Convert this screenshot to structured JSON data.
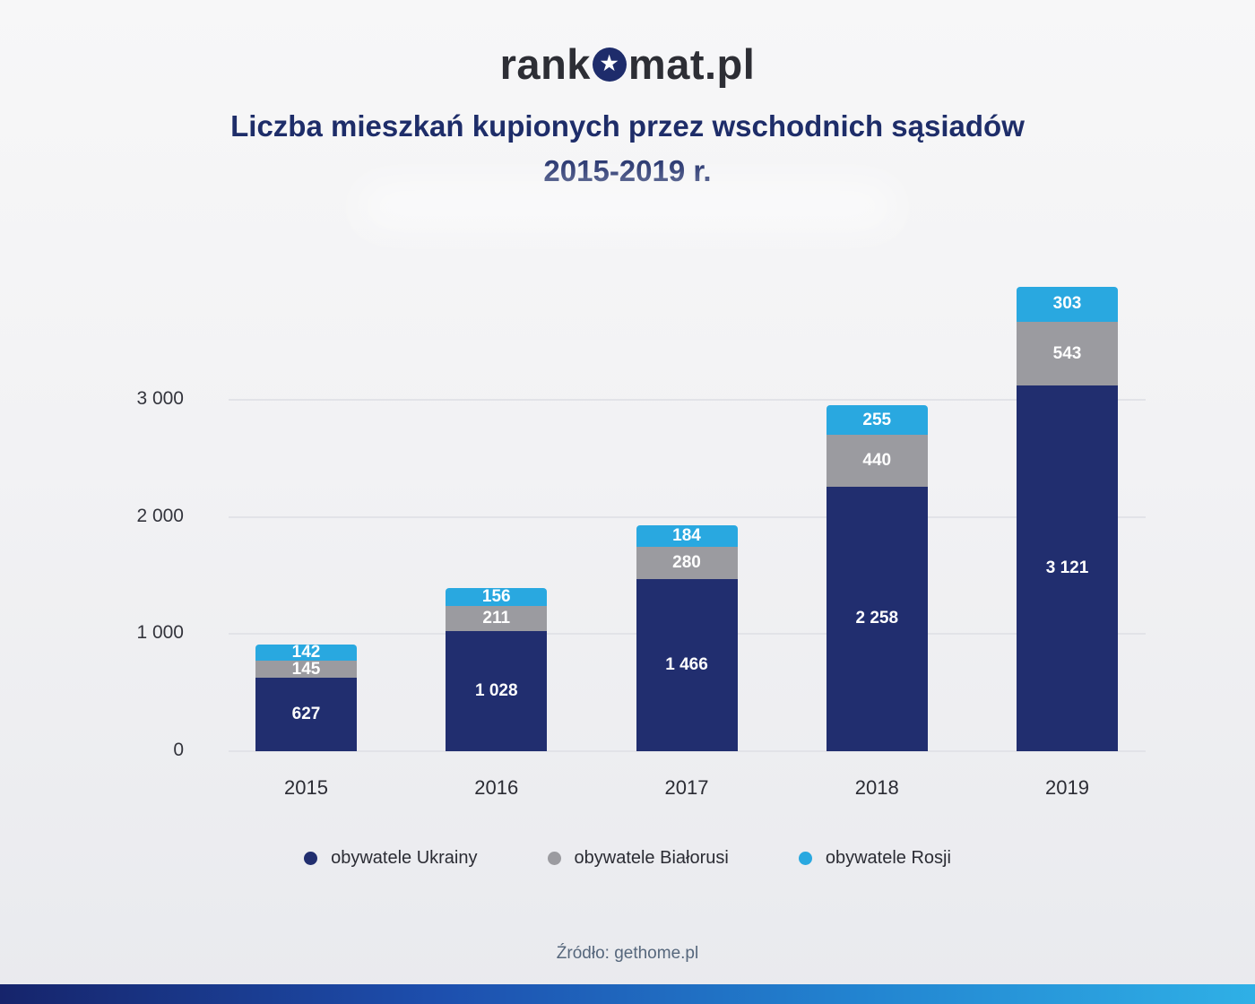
{
  "logo": {
    "part1": "rank",
    "star_glyph": "★",
    "part2": "mat.pl"
  },
  "title": {
    "line1": "Liczba mieszkań kupionych przez wschodnich sąsiadów",
    "line2": "2015-2019 r."
  },
  "source": "Źródło: gethome.pl",
  "colors": {
    "ukraine_navy": "#212e6f",
    "belarus_gray": "#9b9ba0",
    "russia_cyan": "#29a8e0",
    "title_navy": "#1e2d69",
    "footer_gradient_start": "#16246b",
    "footer_gradient_end": "#2fb0e6"
  },
  "chart_data": {
    "type": "bar",
    "stacked": true,
    "title": "Liczba mieszkań kupionych przez wschodnich sąsiadów 2015-2019 r.",
    "categories": [
      "2015",
      "2016",
      "2017",
      "2018",
      "2019"
    ],
    "series": [
      {
        "name": "obywatele Ukrainy",
        "color": "#212e6f",
        "values": [
          627,
          1028,
          1466,
          2258,
          3121
        ],
        "labels": [
          "627",
          "1 028",
          "1 466",
          "2 258",
          "3 121"
        ]
      },
      {
        "name": "obywatele Białorusi",
        "color": "#9b9ba0",
        "values": [
          145,
          211,
          280,
          440,
          543
        ],
        "labels": [
          "145",
          "211",
          "280",
          "440",
          "543"
        ]
      },
      {
        "name": "obywatele Rosji",
        "color": "#29a8e0",
        "values": [
          142,
          156,
          184,
          255,
          303
        ],
        "labels": [
          "142",
          "156",
          "184",
          "255",
          "303"
        ]
      }
    ],
    "yticks": {
      "values": [
        0,
        1000,
        2000,
        3000
      ],
      "labels": [
        "0",
        "1 000",
        "2 000",
        "3 000"
      ]
    },
    "ylim": [
      0,
      4200
    ],
    "xlabel": "",
    "ylabel": "",
    "grid": true,
    "legend_position": "bottom"
  }
}
